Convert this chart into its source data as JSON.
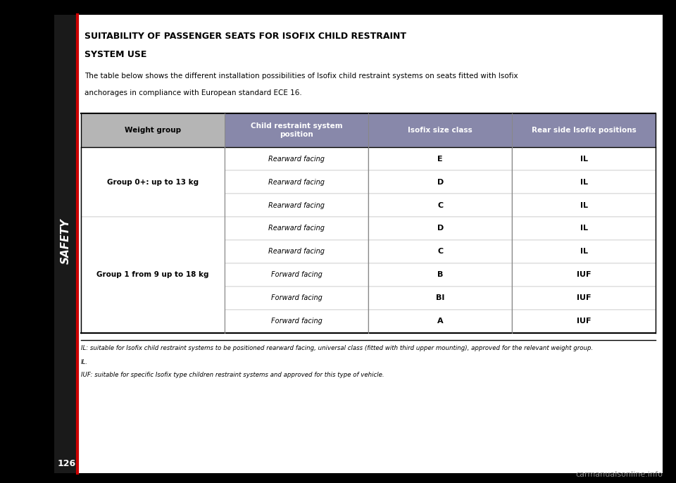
{
  "title_line1": "SUITABILITY OF PASSENGER SEATS FOR ISOFIX CHILD RESTRAINT",
  "title_line2": "SYSTEM USE",
  "intro_text": "The table below shows the different installation possibilities of Isofix child restraint systems on seats fitted with Isofix\nanchorages in compliance with European standard ECE 16.",
  "header_labels": [
    "Weight group",
    "Child restraint system\nposition",
    "Isofix size class",
    "Rear side Isofix positions"
  ],
  "header_bg": [
    "#cccccc",
    "#aaaacc",
    "#aaaacc",
    "#aaaacc"
  ],
  "rows": [
    {
      "group": "Group 0+: up to 13 kg",
      "group_rows": 3,
      "entries": [
        {
          "position": "Rearward facing",
          "size_class": "E",
          "isofix_pos": "IL"
        },
        {
          "position": "Rearward facing",
          "size_class": "D",
          "isofix_pos": "IL"
        },
        {
          "position": "Rearward facing",
          "size_class": "C",
          "isofix_pos": "IL"
        }
      ]
    },
    {
      "group": "Group 1 from 9 up to 18 kg",
      "group_rows": 5,
      "entries": [
        {
          "position": "Rearward facing",
          "size_class": "D",
          "isofix_pos": "IL"
        },
        {
          "position": "Rearward facing",
          "size_class": "C",
          "isofix_pos": "IL"
        },
        {
          "position": "Forward facing",
          "size_class": "B",
          "isofix_pos": "IUF"
        },
        {
          "position": "Forward facing",
          "size_class": "BI",
          "isofix_pos": "IUF"
        },
        {
          "position": "Forward facing",
          "size_class": "A",
          "isofix_pos": "IUF"
        }
      ]
    }
  ],
  "footnote_line1": "IL: suitable for Isofix child restraint systems to be positioned rearward facing, universal class (fitted with third upper mounting), approved for the relevant weight group.",
  "footnote_line2": "IL.",
  "footnote_line3": "IUF: suitable for specific Isofix type children restraint systems and approved for this type of vehicle.",
  "sidebar_text": "SAFETY",
  "page_number": "126",
  "bg_color": "#000000",
  "page_bg": "#000000",
  "header_col1_bg": "#b0b0b0",
  "header_col234_bg": "#8080a0",
  "text_color_white": "#ffffff",
  "text_color_black": "#000000",
  "row_bg_light": "#f0f0f0",
  "row_bg_white": "#ffffff",
  "table_border_color": "#555555"
}
